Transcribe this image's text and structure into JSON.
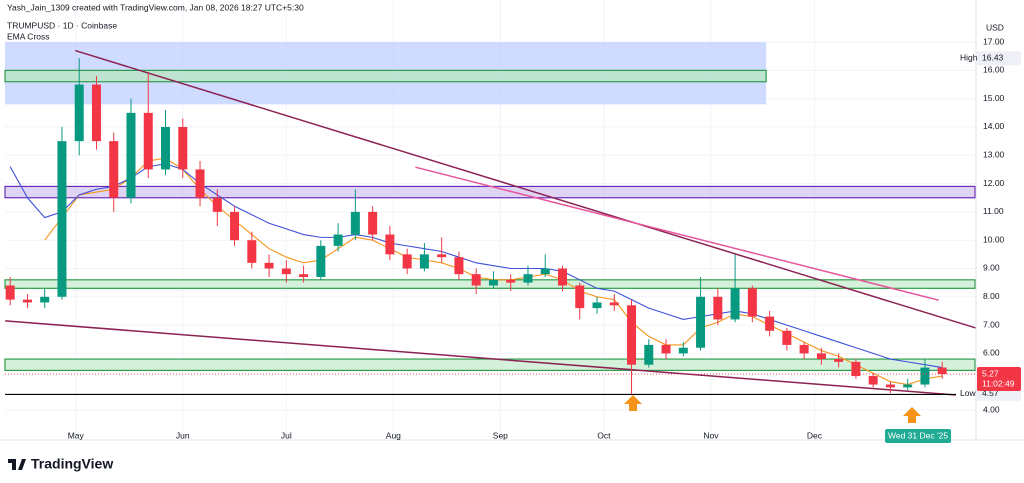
{
  "chart_data": {
    "type": "candlestick",
    "credit": "Yash_Jain_1309 created with TradingView.com, Jan 08, 2026 18:27 UTC+5:30",
    "title": "TRUMPUSD · 1D · Coinbase",
    "indicator": "EMA Cross",
    "currency": "USD",
    "brand": "TradingView",
    "xlim": [
      -0.3,
      55.9
    ],
    "ylim": [
      3.47,
      17.71
    ],
    "xticks": [
      {
        "value": 3.8,
        "label": "May"
      },
      {
        "value": 10,
        "label": "Jun"
      },
      {
        "value": 16,
        "label": "Jul"
      },
      {
        "value": 22.2,
        "label": "Aug"
      },
      {
        "value": 28.4,
        "label": "Sep"
      },
      {
        "value": 34.4,
        "label": "Oct"
      },
      {
        "value": 40.6,
        "label": "Nov"
      },
      {
        "value": 46.6,
        "label": "Dec"
      }
    ],
    "yticks": [
      {
        "value": 17,
        "label": "17.00"
      },
      {
        "value": 16,
        "label": "16.00"
      },
      {
        "value": 15,
        "label": "15.00"
      },
      {
        "value": 14,
        "label": "14.00"
      },
      {
        "value": 13,
        "label": "13.00"
      },
      {
        "value": 12,
        "label": "12.00"
      },
      {
        "value": 11,
        "label": "11.00"
      },
      {
        "value": 10,
        "label": "10.00"
      },
      {
        "value": 9,
        "label": "9.00"
      },
      {
        "value": 8,
        "label": "8.00"
      },
      {
        "value": 7,
        "label": "7.00"
      },
      {
        "value": 6,
        "label": "6.00"
      },
      {
        "value": 4,
        "label": "4.00"
      }
    ],
    "grid": true,
    "candles": {
      "up_color": "#089981",
      "down_color": "#f23645",
      "open": [
        8.4,
        7.9,
        7.8,
        8.0,
        13.5,
        15.5,
        13.5,
        11.5,
        14.5,
        12.5,
        14.0,
        12.5,
        11.5,
        11.0,
        10.0,
        9.2,
        9.0,
        8.8,
        8.7,
        9.8,
        10.2,
        11.0,
        10.2,
        9.5,
        9.0,
        9.5,
        9.4,
        8.8,
        8.4,
        8.6,
        8.5,
        8.8,
        9.0,
        8.4,
        7.6,
        7.8,
        7.7,
        5.6,
        6.3,
        6.0,
        6.2,
        8.0,
        7.2,
        8.3,
        7.3,
        6.8,
        6.3,
        6.0,
        5.8,
        5.7,
        5.2,
        4.9,
        4.8,
        4.9,
        5.5
      ],
      "high": [
        8.7,
        8.1,
        8.3,
        14.0,
        16.43,
        15.8,
        13.8,
        15.0,
        15.9,
        14.6,
        14.3,
        12.8,
        11.8,
        11.2,
        10.3,
        9.5,
        9.3,
        9.1,
        10.0,
        10.6,
        11.8,
        11.2,
        10.5,
        9.7,
        9.9,
        10.1,
        9.6,
        9.0,
        8.9,
        8.8,
        9.1,
        9.5,
        9.1,
        8.5,
        8.0,
        8.1,
        7.9,
        6.5,
        6.5,
        6.4,
        8.7,
        8.3,
        9.5,
        8.4,
        7.5,
        6.9,
        6.4,
        6.2,
        6.0,
        5.8,
        5.3,
        5.0,
        5.1,
        5.8,
        5.7
      ],
      "low": [
        7.7,
        7.6,
        7.6,
        7.9,
        13.0,
        13.2,
        11.0,
        11.3,
        12.2,
        12.3,
        12.2,
        11.2,
        10.5,
        9.8,
        9.0,
        8.7,
        8.5,
        8.5,
        8.6,
        9.6,
        10.0,
        10.0,
        9.3,
        8.8,
        8.9,
        9.2,
        8.6,
        8.1,
        8.3,
        8.2,
        8.4,
        8.7,
        8.2,
        7.2,
        7.4,
        7.5,
        4.57,
        5.5,
        5.8,
        5.9,
        6.1,
        7.0,
        7.1,
        7.1,
        6.6,
        6.1,
        5.8,
        5.6,
        5.5,
        5.1,
        4.8,
        4.6,
        4.7,
        4.8,
        5.1
      ],
      "close": [
        7.9,
        7.8,
        8.0,
        13.5,
        15.5,
        13.5,
        11.5,
        14.5,
        12.5,
        14.0,
        12.5,
        11.5,
        11.0,
        10.0,
        9.2,
        9.0,
        8.8,
        8.7,
        9.8,
        10.2,
        11.0,
        10.2,
        9.5,
        9.0,
        9.5,
        9.4,
        8.8,
        8.4,
        8.6,
        8.5,
        8.8,
        9.0,
        8.4,
        7.6,
        7.8,
        7.7,
        5.6,
        6.3,
        6.0,
        6.2,
        8.0,
        7.2,
        8.3,
        7.3,
        6.8,
        6.3,
        6.0,
        5.8,
        5.7,
        5.2,
        4.9,
        4.8,
        4.9,
        5.5,
        5.27
      ]
    },
    "ema_lines": [
      {
        "color": "#f7931a",
        "values": [
          null,
          null,
          10.0,
          10.8,
          11.6,
          11.7,
          11.8,
          12.2,
          12.8,
          12.9,
          12.5,
          11.8,
          11.2,
          10.7,
          10.2,
          9.7,
          9.4,
          9.2,
          9.3,
          9.7,
          10.1,
          10.0,
          9.7,
          9.4,
          9.3,
          9.2,
          9.0,
          8.7,
          8.6,
          8.6,
          8.7,
          8.8,
          8.6,
          8.2,
          8.0,
          7.9,
          7.1,
          6.6,
          6.3,
          6.3,
          6.9,
          7.1,
          7.4,
          7.3,
          7.0,
          6.7,
          6.4,
          6.1,
          5.9,
          5.6,
          5.3,
          5.0,
          4.9,
          5.1,
          5.2
        ]
      },
      {
        "color": "#3f51d8",
        "values": [
          12.6,
          11.5,
          10.8,
          11.0,
          11.6,
          11.8,
          11.9,
          12.2,
          12.6,
          12.7,
          12.5,
          12.0,
          11.6,
          11.2,
          10.9,
          10.6,
          10.4,
          10.2,
          10.1,
          10.1,
          10.2,
          10.1,
          9.9,
          9.8,
          9.7,
          9.6,
          9.4,
          9.2,
          9.1,
          9.0,
          9.0,
          9.0,
          8.9,
          8.6,
          8.3,
          8.2,
          7.9,
          7.6,
          7.4,
          7.2,
          7.3,
          7.4,
          7.5,
          7.4,
          7.2,
          7.0,
          6.8,
          6.6,
          6.4,
          6.2,
          6.0,
          5.8,
          5.7,
          5.6,
          5.5
        ]
      }
    ],
    "zones": [
      {
        "top": 17.0,
        "bottom": 14.8,
        "x_end": 43.8,
        "fill": "#bfcfff",
        "stroke": "none"
      },
      {
        "top": 16.0,
        "bottom": 15.6,
        "x_end": 43.8,
        "fill": "#b9e6c1",
        "stroke": "#2e9d4a"
      },
      {
        "top": 11.9,
        "bottom": 11.5,
        "x_end": 55.9,
        "fill": "#d5c6f0",
        "stroke": "#6a2fb8"
      },
      {
        "top": 8.6,
        "bottom": 8.3,
        "x_end": 55.9,
        "fill": "#c8eccf",
        "stroke": "#2e9d4a"
      },
      {
        "top": 5.8,
        "bottom": 5.4,
        "x_end": 55.9,
        "fill": "#c8eccf",
        "stroke": "#2e9d4a"
      }
    ],
    "trend_lines": [
      {
        "color": "#8b2252",
        "x": [
          3.77,
          55.94
        ],
        "y": [
          16.7,
          6.9
        ]
      },
      {
        "color": "#8b2252",
        "x": [
          -0.29,
          54.78
        ],
        "y": [
          7.15,
          4.53
        ]
      },
      {
        "color": "#e8559a",
        "x": [
          23.48,
          53.8
        ],
        "y": [
          12.58,
          7.88
        ]
      },
      {
        "color": "#000000",
        "x": [
          -0.3,
          54.8
        ],
        "y": [
          4.55,
          4.55
        ]
      }
    ],
    "high_marker": {
      "label": "High",
      "value": 16.43
    },
    "low_marker": {
      "label": "Low",
      "value": 4.57
    },
    "last_price": {
      "value": 5.27,
      "countdown": "11:02:49"
    },
    "crosshair_date": {
      "value": 52.6,
      "label": "Wed 31 Dec '25"
    }
  }
}
